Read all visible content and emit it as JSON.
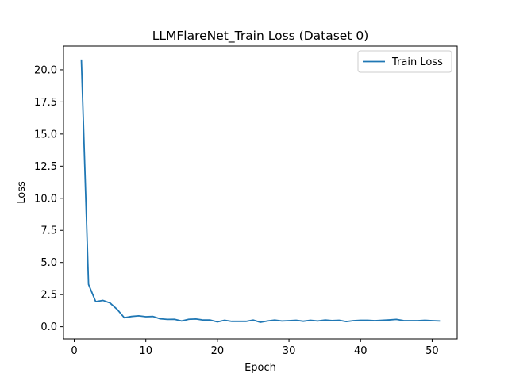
{
  "chart_data": {
    "type": "line",
    "title": "LLMFlareNet_Train Loss  (Dataset 0)",
    "xlabel": "Epoch",
    "ylabel": "Loss",
    "xlim": [
      -1.5,
      53.5
    ],
    "ylim": [
      -0.95,
      21.85
    ],
    "xticks": [
      0,
      10,
      20,
      30,
      40,
      50
    ],
    "yticks": [
      0.0,
      2.5,
      5.0,
      7.5,
      10.0,
      12.5,
      15.0,
      17.5,
      20.0
    ],
    "xtick_labels": [
      "0",
      "10",
      "20",
      "30",
      "40",
      "50"
    ],
    "ytick_labels": [
      "0.0",
      "2.5",
      "5.0",
      "7.5",
      "10.0",
      "12.5",
      "15.0",
      "17.5",
      "20.0"
    ],
    "grid": false,
    "legend_position": "top-right",
    "series": [
      {
        "name": "Train Loss",
        "color": "#1f77b4",
        "x": [
          1,
          2,
          3,
          4,
          5,
          6,
          7,
          8,
          9,
          10,
          11,
          12,
          13,
          14,
          15,
          16,
          17,
          18,
          19,
          20,
          21,
          22,
          23,
          24,
          25,
          26,
          27,
          28,
          29,
          30,
          31,
          32,
          33,
          34,
          35,
          36,
          37,
          38,
          39,
          40,
          41,
          42,
          43,
          44,
          45,
          46,
          47,
          48,
          49,
          50,
          51
        ],
        "y": [
          20.75,
          3.3,
          1.95,
          2.05,
          1.85,
          1.35,
          0.7,
          0.8,
          0.85,
          0.78,
          0.8,
          0.62,
          0.57,
          0.58,
          0.45,
          0.58,
          0.6,
          0.52,
          0.52,
          0.38,
          0.5,
          0.42,
          0.42,
          0.42,
          0.52,
          0.35,
          0.45,
          0.52,
          0.45,
          0.47,
          0.5,
          0.43,
          0.5,
          0.45,
          0.52,
          0.48,
          0.5,
          0.4,
          0.47,
          0.5,
          0.5,
          0.47,
          0.5,
          0.53,
          0.57,
          0.48,
          0.47,
          0.47,
          0.5,
          0.47,
          0.45
        ]
      }
    ]
  }
}
